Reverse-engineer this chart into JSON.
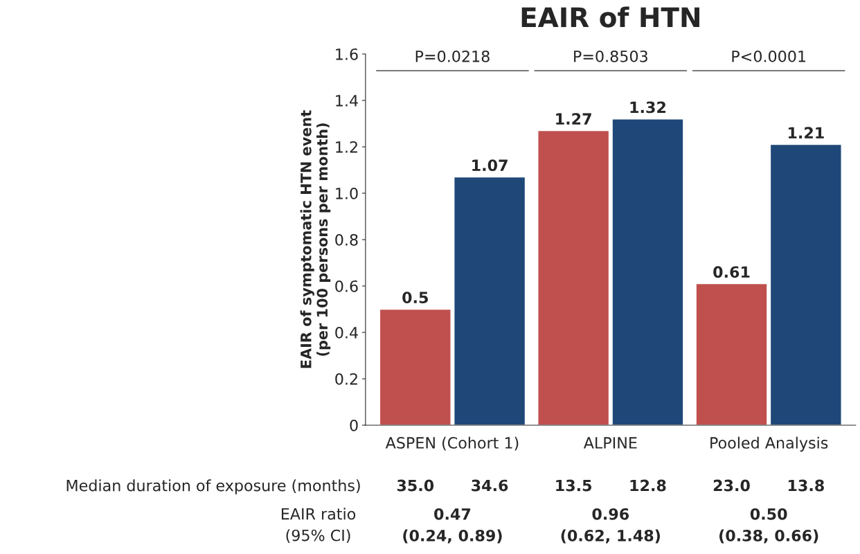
{
  "chart_data": {
    "type": "bar",
    "title": "EAIR of HTN",
    "ylabel": "EAIR of symptomatic HTN event\n(per 100 persons per month)",
    "categories": [
      "ASPEN (Cohort 1)",
      "ALPINE",
      "Pooled Analysis"
    ],
    "series": [
      {
        "color": "#c0504d",
        "values": [
          0.5,
          1.27,
          0.61
        ]
      },
      {
        "color": "#1f4878",
        "values": [
          1.07,
          1.32,
          1.21
        ]
      }
    ],
    "ylim": [
      0,
      1.6
    ],
    "yticks": [
      0,
      0.2,
      0.4,
      0.6,
      0.8,
      {
        "value": 1,
        "label": "1.0"
      },
      1.2,
      1.4,
      1.6
    ],
    "data_labels": true,
    "grid": false,
    "legend": false,
    "annotations": [
      "P=0.0218",
      "P=0.8503",
      "P<0.0001",
      "Median duration of exposure (months)",
      "35.0",
      "34.6",
      "13.5",
      "12.8",
      "23.0",
      "13.8",
      "EAIR ratio",
      "(95% CI)",
      "0.47",
      "0.96",
      "0.50",
      "(0.24, 0.89)",
      "(0.62, 1.48)",
      "(0.38, 0.66)"
    ]
  }
}
